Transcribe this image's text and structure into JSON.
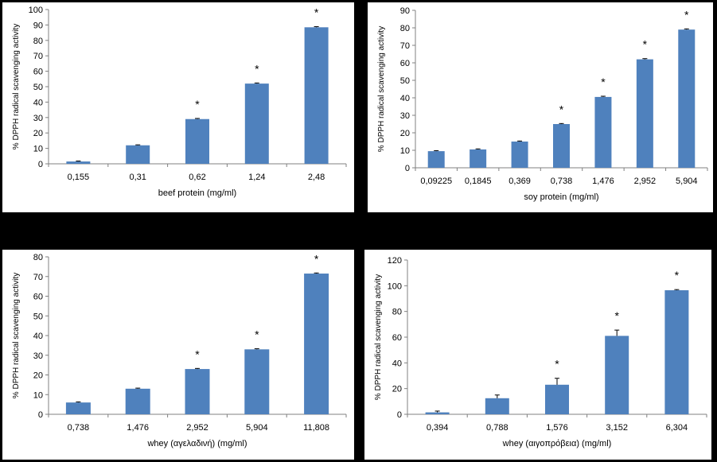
{
  "style": {
    "bar_color": "#4f81bd",
    "axis_color": "#808080",
    "background": "#000000"
  },
  "chart_data": [
    {
      "type": "bar",
      "categories": [
        "0,155",
        "0,31",
        "0,62",
        "1,24",
        "2,48"
      ],
      "values": [
        1.5,
        12,
        29,
        52,
        88.5
      ],
      "errors": [
        0.3,
        0.3,
        0.4,
        0.4,
        0.4
      ],
      "significant": [
        false,
        false,
        true,
        true,
        true
      ],
      "xlabel": "beef protein (mg/ml)",
      "ylabel": "% DPPH radical scavenging  activity",
      "ylim": [
        0,
        100
      ],
      "yticks": [
        0,
        10,
        20,
        30,
        40,
        50,
        60,
        70,
        80,
        90,
        100
      ],
      "grid": false
    },
    {
      "type": "bar",
      "categories": [
        "0,09225",
        "0,1845",
        "0,369",
        "0,738",
        "1,476",
        "2,952",
        "5,904"
      ],
      "values": [
        9.5,
        10.5,
        15,
        25,
        40.5,
        62,
        79
      ],
      "errors": [
        0.3,
        0.3,
        0.3,
        0.3,
        0.4,
        0.4,
        0.4
      ],
      "significant": [
        false,
        false,
        false,
        true,
        true,
        true,
        true
      ],
      "xlabel": "soy protein (mg/ml)",
      "ylabel": "% DPPH radical scavenging  activity",
      "ylim": [
        0,
        90
      ],
      "yticks": [
        0,
        10,
        20,
        30,
        40,
        50,
        60,
        70,
        80,
        90
      ],
      "grid": false
    },
    {
      "type": "bar",
      "categories": [
        "0,738",
        "1,476",
        "2,952",
        "5,904",
        "11,808"
      ],
      "values": [
        6,
        13,
        23,
        33,
        71.5
      ],
      "errors": [
        0.3,
        0.3,
        0.3,
        0.3,
        0.3
      ],
      "significant": [
        false,
        false,
        true,
        true,
        true
      ],
      "xlabel": "whey (αγελαδινή) (mg/ml)",
      "ylabel": "% DPPH radical scavenging  activity",
      "ylim": [
        0,
        80
      ],
      "yticks": [
        0,
        10,
        20,
        30,
        40,
        50,
        60,
        70,
        80
      ],
      "grid": false
    },
    {
      "type": "bar",
      "categories": [
        "0,394",
        "0,788",
        "1,576",
        "3,152",
        "6,304"
      ],
      "values": [
        1.5,
        12.5,
        23,
        61,
        96.5
      ],
      "errors": [
        1,
        2.5,
        5,
        4.5,
        0.5
      ],
      "significant": [
        false,
        false,
        true,
        true,
        true
      ],
      "xlabel": "whey (αιγοπρόβεια) (mg/ml)",
      "ylabel": "% DPPH radical scavenging  activity",
      "ylim": [
        0,
        120
      ],
      "yticks": [
        0,
        20,
        40,
        60,
        80,
        100,
        120
      ],
      "grid": false
    }
  ],
  "significance_marker": "*"
}
